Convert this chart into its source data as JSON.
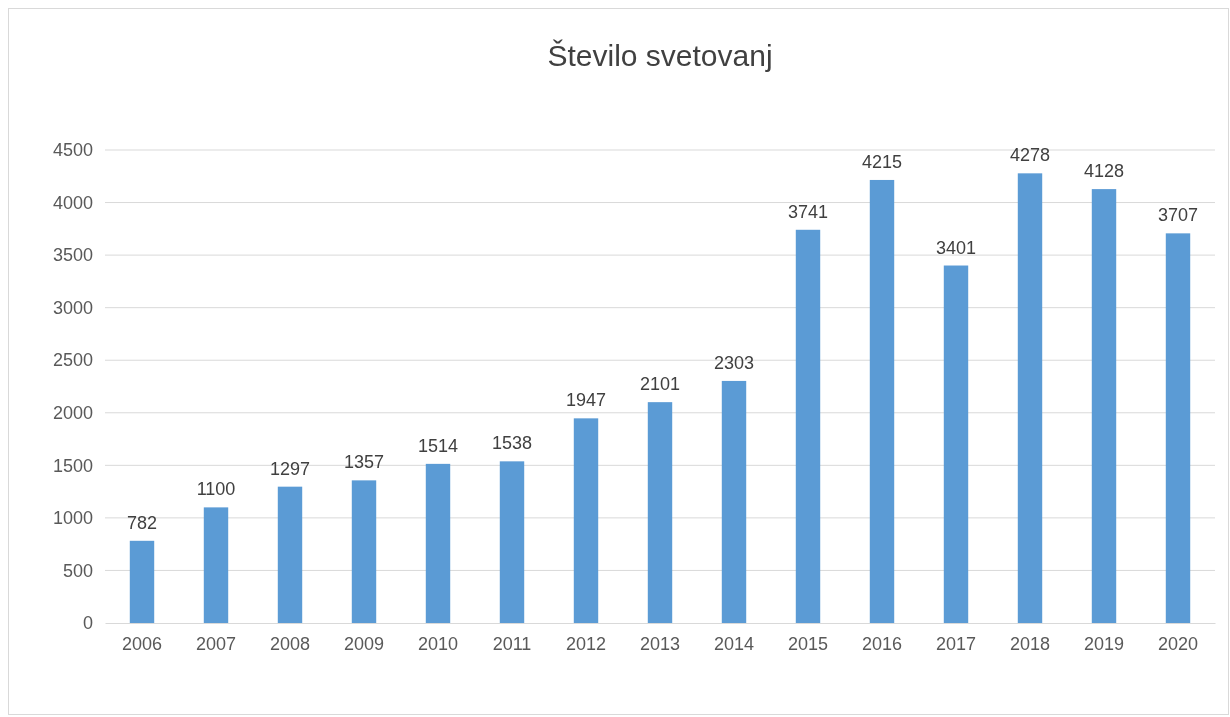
{
  "chart_data": {
    "type": "bar",
    "title": "Število svetovanj",
    "categories": [
      "2006",
      "2007",
      "2008",
      "2009",
      "2010",
      "2011",
      "2012",
      "2013",
      "2014",
      "2015",
      "2016",
      "2017",
      "2018",
      "2019",
      "2020"
    ],
    "values": [
      782,
      1100,
      1297,
      1357,
      1514,
      1538,
      1947,
      2101,
      2303,
      3741,
      4215,
      3401,
      4278,
      4128,
      3707
    ],
    "color": "#5b9bd5",
    "ylim": [
      0,
      4500
    ],
    "yticks": [
      0,
      500,
      1000,
      1500,
      2000,
      2500,
      3000,
      3500,
      4000,
      4500
    ],
    "grid": "y",
    "data_labels": true
  }
}
